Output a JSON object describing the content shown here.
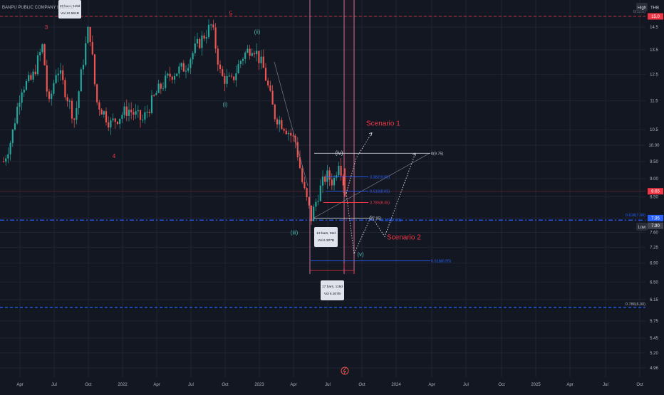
{
  "header": {
    "symbol": "BANPU PUBLIC COMPANY LIMITED",
    "mode_badge": "High",
    "currency_badge": "THB"
  },
  "price_axis": {
    "min": 4.9,
    "max": 15.2,
    "scale": "log",
    "ticks": [
      "15.0",
      "14.5",
      "13.5",
      "12.5",
      "11.5",
      "10.5",
      "10.00",
      "9.50",
      "9.00",
      "8.50",
      "7.95",
      "7.60",
      "7.25",
      "6.90",
      "6.50",
      "6.15",
      "5.75",
      "5.45",
      "5.20",
      "4.96"
    ],
    "tags": [
      {
        "label": "15.0",
        "price": 15.0,
        "color": "#f23645"
      },
      {
        "label": "8.65",
        "price": 8.65,
        "color": "#f23645"
      },
      {
        "label": "7.95",
        "price": 7.95,
        "color": "#2962ff"
      },
      {
        "label": "7.90",
        "price": 7.9,
        "color": "#434651"
      }
    ],
    "low_badge": "Low"
  },
  "time_axis": {
    "labels": [
      "Apr",
      "Jul",
      "Oct",
      "2022",
      "Apr",
      "Jul",
      "Oct",
      "2023",
      "Apr",
      "Jul",
      "Oct",
      "2024",
      "Apr",
      "Jul",
      "Oct",
      "2025",
      "Apr",
      "Jul",
      "Oct"
    ]
  },
  "colors": {
    "up": "#26a69a",
    "down": "#ef5350",
    "background": "#131722",
    "grid": "#1f2433",
    "wave_red": "#f23645",
    "wave_teal": "#4db6ac",
    "fib_blue": "#2962ff",
    "dashed_blue": "#2962ff"
  },
  "chart_data": {
    "type": "candlestick",
    "title": "",
    "xlabel": "",
    "ylabel": "",
    "ylim": [
      4.9,
      15.2
    ],
    "x": [
      "2021-04",
      "2021-07",
      "2021-10",
      "2022-01",
      "2022-04",
      "2022-07",
      "2022-10",
      "2023-01",
      "2023-04",
      "2023-07",
      "2023-10",
      "2024-01"
    ],
    "close": [
      9.0,
      12.0,
      13.7,
      11.5,
      12.5,
      13.8,
      12.0,
      13.5,
      9.5,
      9.3,
      8.65,
      8.65
    ],
    "wave_labels": [
      {
        "text": "3",
        "price": 14.4
      },
      {
        "text": "4",
        "price": 9.6
      },
      {
        "text": "5",
        "price": 15.05
      },
      {
        "text": "(i)",
        "price": 11.3
      },
      {
        "text": "(ii)",
        "price": 14.2
      },
      {
        "text": "(iii)",
        "price": 7.55
      },
      {
        "text": "(iv)",
        "price": 9.7
      },
      {
        "text": "(v)",
        "price": 7.05
      }
    ],
    "fib_levels": [
      {
        "label": "0(9.75)",
        "price": 9.75
      },
      {
        "label": "0.382(9.05)",
        "price": 9.05
      },
      {
        "label": "0.618(8.65)",
        "price": 8.65
      },
      {
        "label": "0.786(8.35)",
        "price": 8.35
      },
      {
        "label": "1(7.95)",
        "price": 7.95
      },
      {
        "label": "0.618(6.95)",
        "price": 6.95
      }
    ],
    "extra_labels": [
      {
        "label": "0.618(7.90)",
        "price": 7.9
      },
      {
        "label": "0.786(6.00)",
        "price": 6.0
      },
      {
        "label": "0.382(7.90)",
        "price": 7.9
      }
    ],
    "scenarios": [
      {
        "name": "Scenario 1",
        "target": 10.4
      },
      {
        "name": "Scenario 2",
        "low": 7.5,
        "target": 9.75
      }
    ],
    "annotations": [
      {
        "text": "17 bars, 119d",
        "sub": "Vol 12.561B"
      },
      {
        "text": "13 bars, 92d",
        "sub": "Vol 6.307B"
      },
      {
        "text": "17 bars, 119d",
        "sub": "Vol 6.307B"
      }
    ],
    "top_label": "0(15.0)"
  }
}
